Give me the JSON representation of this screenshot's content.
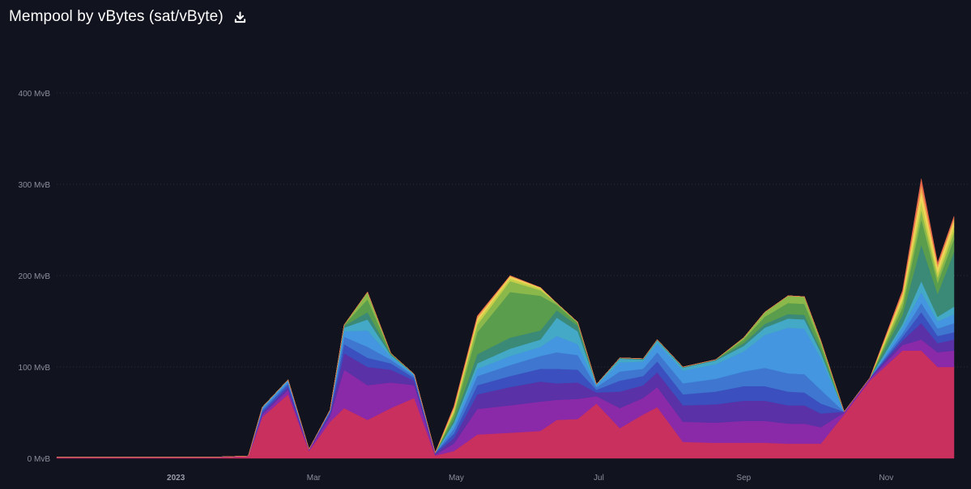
{
  "header": {
    "title": "Mempool by vBytes (sat/vByte)",
    "download_icon": "download-icon"
  },
  "chart_data": {
    "type": "area",
    "stacked": true,
    "title": "Mempool by vBytes (sat/vByte)",
    "xlabel": "",
    "ylabel": "",
    "y_unit": "MvB",
    "ylim": [
      0,
      400
    ],
    "grid": true,
    "legend": "none",
    "y_ticks": [
      {
        "value": 0,
        "label": "0 MvB"
      },
      {
        "value": 100,
        "label": "100 MvB"
      },
      {
        "value": 200,
        "label": "200 MvB"
      },
      {
        "value": 300,
        "label": "300 MvB"
      },
      {
        "value": 400,
        "label": "400 MvB"
      }
    ],
    "x_domain": [
      "2022-11-11",
      "2023-11-30"
    ],
    "x_ticks": [
      {
        "date": "2023-01-01",
        "label": "2023",
        "bold": true
      },
      {
        "date": "2023-03-01",
        "label": "Mar",
        "bold": false
      },
      {
        "date": "2023-05-01",
        "label": "May",
        "bold": false
      },
      {
        "date": "2023-07-01",
        "label": "Jul",
        "bold": false
      },
      {
        "date": "2023-09-01",
        "label": "Sep",
        "bold": false
      },
      {
        "date": "2023-11-01",
        "label": "Nov",
        "bold": false
      }
    ],
    "dates": [
      "2022-11-11",
      "2022-11-25",
      "2022-12-10",
      "2022-12-25",
      "2023-01-07",
      "2023-01-20",
      "2023-02-01",
      "2023-02-07",
      "2023-02-18",
      "2023-02-27",
      "2023-03-08",
      "2023-03-14",
      "2023-03-24",
      "2023-04-03",
      "2023-04-13",
      "2023-04-22",
      "2023-04-30",
      "2023-05-10",
      "2023-05-24",
      "2023-06-06",
      "2023-06-13",
      "2023-06-22",
      "2023-06-30",
      "2023-07-10",
      "2023-07-20",
      "2023-07-26",
      "2023-08-06",
      "2023-08-20",
      "2023-09-01",
      "2023-09-10",
      "2023-09-20",
      "2023-09-27",
      "2023-10-04",
      "2023-10-14",
      "2023-10-25",
      "2023-11-08",
      "2023-11-16",
      "2023-11-23",
      "2023-11-30"
    ],
    "series": [
      {
        "color": "#c9305d",
        "values": [
          1,
          1,
          1,
          1,
          1,
          1,
          2,
          45,
          70,
          8,
          40,
          55,
          42,
          55,
          66,
          3,
          8,
          26,
          28,
          30,
          42,
          43,
          60,
          33,
          48,
          56,
          18,
          17,
          17,
          17,
          16,
          16,
          16,
          48,
          85,
          118,
          118,
          100,
          100
        ]
      },
      {
        "color": "#8b2aa8",
        "values": [
          0.5,
          0.5,
          0.5,
          0.5,
          0.5,
          0.5,
          0.5,
          3,
          5,
          1,
          6,
          42,
          38,
          28,
          14,
          1,
          8,
          28,
          30,
          32,
          22,
          22,
          8,
          22,
          18,
          22,
          22,
          22,
          24,
          24,
          22,
          22,
          18,
          2,
          2,
          6,
          12,
          16,
          18
        ]
      },
      {
        "color": "#5a31a6",
        "values": [
          0,
          0,
          0,
          0,
          0,
          0,
          0,
          2,
          3,
          1,
          3,
          18,
          20,
          14,
          5,
          1,
          6,
          16,
          20,
          22,
          18,
          18,
          4,
          18,
          14,
          16,
          18,
          20,
          22,
          22,
          20,
          20,
          15,
          1,
          1,
          5,
          18,
          10,
          12
        ]
      },
      {
        "color": "#3b4fbe",
        "values": [
          0,
          0,
          0,
          0,
          0,
          0,
          0,
          2,
          3,
          0,
          2,
          10,
          10,
          7,
          3,
          1,
          5,
          10,
          12,
          14,
          16,
          14,
          3,
          12,
          10,
          12,
          12,
          14,
          16,
          16,
          15,
          14,
          11,
          0,
          0,
          4,
          12,
          8,
          8
        ]
      },
      {
        "color": "#3e76d0",
        "values": [
          0,
          0,
          0,
          0,
          0,
          0,
          0,
          2,
          2,
          0,
          1,
          8,
          12,
          4,
          2,
          0,
          5,
          10,
          12,
          14,
          18,
          16,
          3,
          10,
          8,
          10,
          12,
          14,
          16,
          20,
          20,
          20,
          15,
          0,
          0,
          4,
          10,
          8,
          10
        ]
      },
      {
        "color": "#4396df",
        "values": [
          0,
          0,
          0,
          0,
          0,
          0,
          0,
          1,
          2,
          0,
          1,
          6,
          18,
          3,
          1,
          0,
          4,
          8,
          10,
          10,
          18,
          12,
          2,
          10,
          8,
          10,
          14,
          16,
          22,
          36,
          50,
          50,
          35,
          0,
          0,
          6,
          12,
          8,
          10
        ]
      },
      {
        "color": "#44a9c6",
        "values": [
          0,
          0,
          0,
          0,
          0,
          0,
          0,
          1,
          1,
          0,
          0,
          4,
          12,
          2,
          1,
          0,
          3,
          6,
          8,
          8,
          20,
          14,
          1,
          4,
          2,
          3,
          3,
          4,
          6,
          8,
          10,
          10,
          6,
          0,
          0,
          4,
          12,
          5,
          8
        ]
      },
      {
        "color": "#3b8a78",
        "values": [
          0,
          0,
          0,
          0,
          0,
          0,
          0,
          0,
          0,
          0,
          0,
          2,
          8,
          1,
          0,
          0,
          3,
          10,
          12,
          10,
          8,
          6,
          0,
          1,
          1,
          1,
          1,
          1,
          3,
          4,
          5,
          5,
          3,
          0,
          0,
          10,
          40,
          25,
          60
        ]
      },
      {
        "color": "#5a9d4d",
        "values": [
          0,
          0,
          0,
          0,
          0,
          0,
          0,
          0,
          0,
          0,
          0,
          1,
          14,
          1,
          0,
          0,
          5,
          24,
          50,
          38,
          6,
          3,
          0,
          0,
          0,
          0,
          0,
          0,
          4,
          8,
          12,
          12,
          6,
          0,
          0,
          8,
          28,
          12,
          14
        ]
      },
      {
        "color": "#8bb84a",
        "values": [
          0,
          0,
          0,
          0,
          0,
          0,
          0,
          0,
          0,
          0,
          0,
          0,
          8,
          0,
          0,
          0,
          3,
          8,
          12,
          6,
          2,
          1,
          0,
          0,
          0,
          0,
          0,
          0,
          2,
          5,
          8,
          8,
          4,
          0,
          0,
          6,
          10,
          6,
          8
        ]
      },
      {
        "color": "#c6cf48",
        "values": [
          0,
          0,
          0,
          0,
          0,
          0,
          0,
          0,
          0,
          0,
          0,
          0,
          0,
          0,
          0,
          0,
          2,
          4,
          3,
          2,
          0,
          0,
          0,
          0,
          0,
          0,
          0,
          0,
          0,
          0,
          0,
          0,
          0,
          0,
          0,
          4,
          10,
          5,
          6
        ]
      },
      {
        "color": "#f0d55a",
        "values": [
          0,
          0,
          0,
          0,
          0,
          0,
          0,
          0,
          0,
          0,
          0,
          0,
          0,
          0,
          0,
          0,
          2,
          3,
          2,
          1,
          0,
          0,
          0,
          0,
          0,
          0,
          0,
          0,
          0,
          0,
          0,
          0,
          0,
          0,
          0,
          4,
          10,
          6,
          6
        ]
      },
      {
        "color": "#f0a64d",
        "values": [
          0,
          0,
          0,
          0,
          0,
          0,
          0,
          0,
          0,
          0,
          0,
          0,
          0,
          0,
          0,
          0,
          2,
          2,
          1,
          0,
          0,
          0,
          0,
          0,
          0,
          0,
          0,
          0,
          0,
          0,
          0,
          0,
          0,
          0,
          0,
          3,
          8,
          3,
          3
        ]
      },
      {
        "color": "#e4634a",
        "values": [
          0,
          0,
          0,
          0,
          0,
          0,
          0,
          0,
          0,
          0,
          0,
          0,
          0,
          0,
          0,
          0,
          1,
          1,
          0,
          0,
          0,
          0,
          0,
          0,
          0,
          0,
          0,
          0,
          0,
          0,
          0,
          0,
          0,
          0,
          0,
          2,
          6,
          2,
          2
        ]
      }
    ]
  }
}
